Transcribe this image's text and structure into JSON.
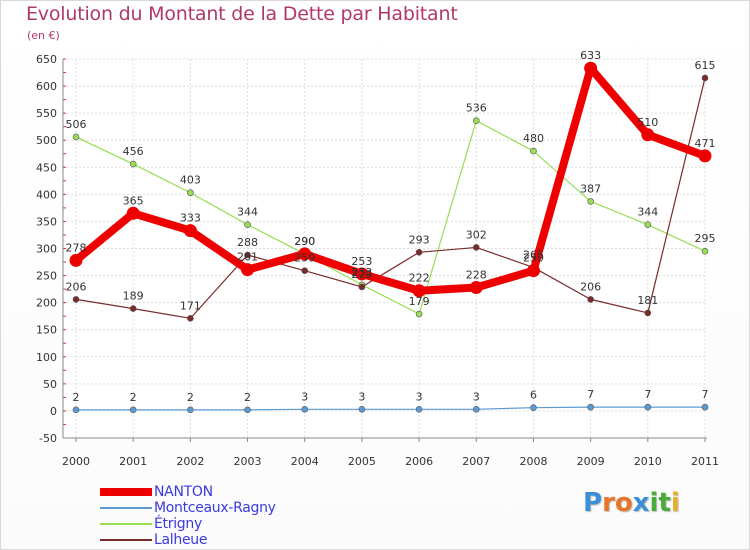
{
  "title": "Evolution du Montant de la Dette par Habitant",
  "subtitle": "(en €)",
  "logo": {
    "text": "Proxiti",
    "letters": [
      {
        "ch": "P",
        "color": "#3a8fd6"
      },
      {
        "ch": "r",
        "color": "#e8742a"
      },
      {
        "ch": "o",
        "color": "#e8742a"
      },
      {
        "ch": "x",
        "color": "#3a8fd6"
      },
      {
        "ch": "i",
        "color": "#4caa3a"
      },
      {
        "ch": "t",
        "color": "#4caa3a"
      },
      {
        "ch": "i",
        "color": "#e3b22a"
      }
    ]
  },
  "chart_data": {
    "type": "line",
    "title": "Evolution du Montant de la Dette par Habitant",
    "subtitle": "(en €)",
    "xlabel": "",
    "ylabel": "",
    "x": [
      "2000",
      "2001",
      "2002",
      "2003",
      "2004",
      "2005",
      "2006",
      "2007",
      "2008",
      "2009",
      "2010",
      "2011"
    ],
    "ylim": [
      -50,
      650
    ],
    "yticks": [
      -50,
      0,
      50,
      100,
      150,
      200,
      250,
      300,
      350,
      400,
      450,
      500,
      550,
      600,
      650
    ],
    "grid": "horizontal",
    "legend_position": "bottom-left",
    "series": [
      {
        "name": "NANTON",
        "color": "#ee0000",
        "width": "thick",
        "values": [
          278,
          365,
          333,
          261,
          290,
          253,
          222,
          228,
          259,
          633,
          510,
          471
        ],
        "labels": [
          "278",
          "365",
          "333",
          "261",
          "290",
          "253",
          "222",
          "228",
          "259",
          "633",
          "510",
          "471"
        ]
      },
      {
        "name": "Montceaux-Ragny",
        "color": "#5b9bd5",
        "width": "thin",
        "values": [
          2,
          2,
          2,
          2,
          3,
          3,
          3,
          3,
          6,
          7,
          7,
          7
        ],
        "labels": [
          "2",
          "2",
          "2",
          "2",
          "3",
          "3",
          "3",
          "3",
          "6",
          "7",
          "7",
          "7"
        ]
      },
      {
        "name": "Étrigny",
        "color": "#99dd55",
        "width": "thin",
        "values": [
          506,
          456,
          403,
          344,
          290,
          233,
          179,
          536,
          480,
          387,
          344,
          295
        ],
        "labels": [
          "506",
          "456",
          "403",
          "344",
          "290",
          "233",
          "179",
          "536",
          "480",
          "387",
          "344",
          "295"
        ]
      },
      {
        "name": "Lalheue",
        "color": "#7a2a2a",
        "width": "thin",
        "values": [
          206,
          189,
          171,
          288,
          259,
          229,
          293,
          302,
          265,
          206,
          181,
          615
        ],
        "labels": [
          "206",
          "189",
          "171",
          "288",
          "259",
          "229",
          "293",
          "302",
          "265",
          "206",
          "181",
          "615"
        ]
      }
    ]
  }
}
